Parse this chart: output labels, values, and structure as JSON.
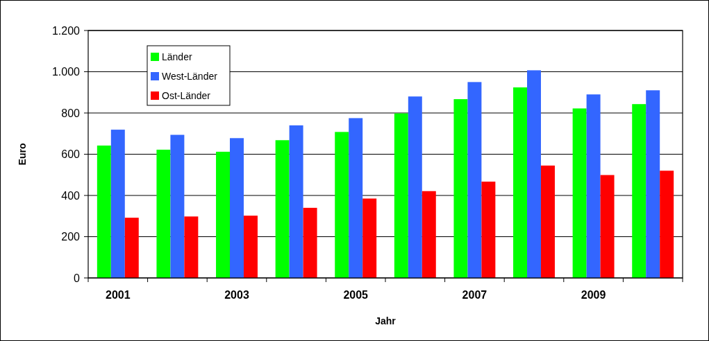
{
  "chart_data": {
    "type": "bar",
    "xlabel": "Jahr",
    "ylabel": "Euro",
    "categories": [
      "2001",
      null,
      "2003",
      null,
      "2005",
      null,
      "2007",
      null,
      "2009",
      null
    ],
    "series": [
      {
        "name": "Länder",
        "color": "#00ff00",
        "values": [
          642,
          622,
          612,
          668,
          708,
          798,
          867,
          924,
          822,
          843
        ]
      },
      {
        "name": "West-Länder",
        "color": "#3366ff",
        "values": [
          719,
          694,
          678,
          740,
          775,
          880,
          950,
          1007,
          890,
          910
        ]
      },
      {
        "name": "Ost-Länder",
        "color": "#ff0000",
        "values": [
          292,
          298,
          302,
          340,
          385,
          421,
          467,
          545,
          499,
          520
        ]
      }
    ],
    "ylim": [
      0,
      1200
    ],
    "yticks": [
      0,
      200,
      400,
      600,
      800,
      {
        "value": 1000,
        "label": "1.000"
      },
      {
        "value": 1200,
        "label": "1.200"
      }
    ],
    "grid": "y",
    "legend": "top left"
  }
}
